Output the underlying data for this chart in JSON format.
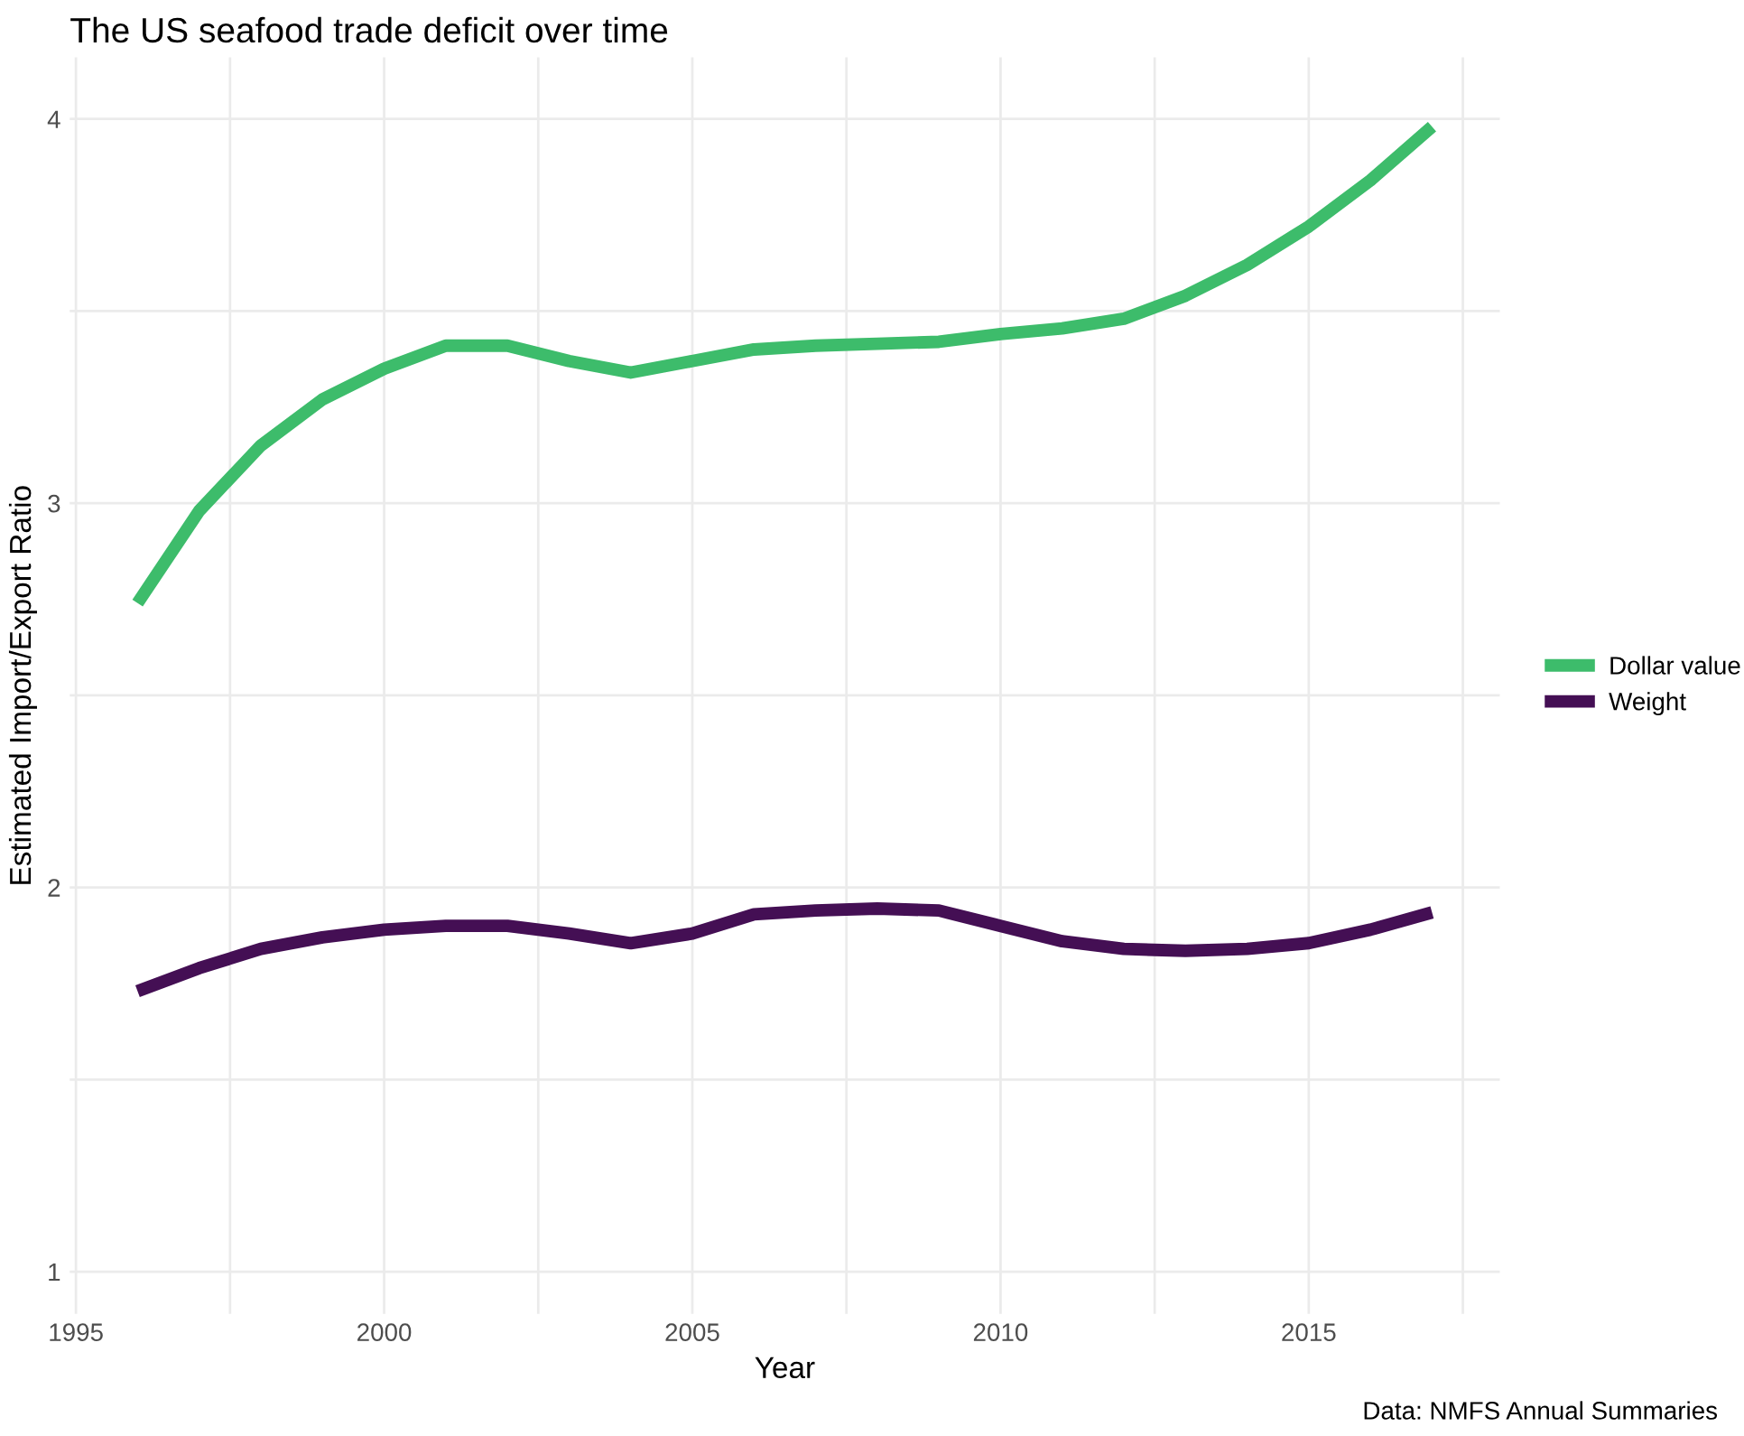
{
  "chart_data": {
    "type": "line",
    "title": "The US seafood trade deficit over time",
    "xlabel": "Year",
    "ylabel": "Estimated Import/Export Ratio",
    "x": [
      1996,
      1997,
      1998,
      1999,
      2000,
      2001,
      2002,
      2003,
      2004,
      2005,
      2006,
      2007,
      2008,
      2009,
      2010,
      2011,
      2012,
      2013,
      2014,
      2015,
      2016,
      2017
    ],
    "series": [
      {
        "name": "Dollar value",
        "color": "#3dbc6b",
        "values": [
          2.74,
          2.98,
          3.15,
          3.27,
          3.35,
          3.41,
          3.41,
          3.37,
          3.34,
          3.37,
          3.4,
          3.41,
          3.415,
          3.42,
          3.44,
          3.455,
          3.48,
          3.54,
          3.62,
          3.72,
          3.84,
          3.98
        ]
      },
      {
        "name": "Weight",
        "color": "#440f54",
        "values": [
          1.73,
          1.79,
          1.84,
          1.87,
          1.89,
          1.9,
          1.9,
          1.88,
          1.855,
          1.88,
          1.93,
          1.94,
          1.945,
          1.94,
          1.9,
          1.86,
          1.84,
          1.835,
          1.84,
          1.855,
          1.89,
          1.935
        ]
      }
    ],
    "xlim": [
      1994.9,
      2018.1
    ],
    "ylim": [
      0.89,
      4.16
    ],
    "xticks": [
      1995,
      {
        "value": 1997.5,
        "label": null
      },
      2000,
      {
        "value": 2002.5,
        "label": null
      },
      2005,
      {
        "value": 2007.5,
        "label": null
      },
      2010,
      {
        "value": 2012.5,
        "label": null
      },
      2015,
      {
        "value": 2017.5,
        "label": null
      }
    ],
    "yticks": [
      1,
      {
        "value": 1.5,
        "label": null
      },
      2,
      {
        "value": 2.5,
        "label": null
      },
      3,
      {
        "value": 3.5,
        "label": null
      },
      4
    ],
    "grid": true,
    "legend": "right",
    "line_style": "solid",
    "marker": "none",
    "annotations": [
      "Data: NMFS Annual Summaries"
    ]
  }
}
